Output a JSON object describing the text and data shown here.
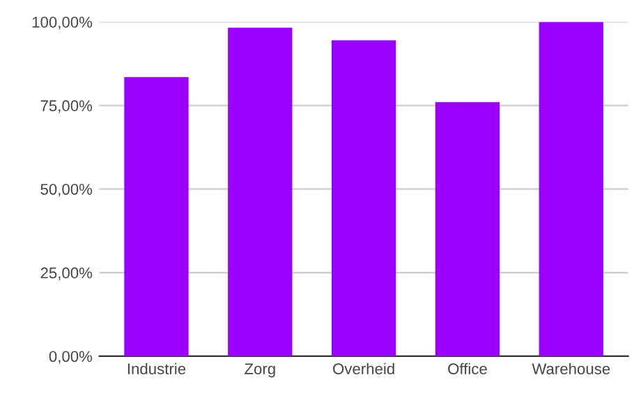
{
  "chart_data": {
    "type": "bar",
    "categories": [
      "Industrie",
      "Zorg",
      "Overheid",
      "Office",
      "Warehouse"
    ],
    "values": [
      83.5,
      98.3,
      94.5,
      76,
      100
    ],
    "color": "#9900ff",
    "ylim": [
      0,
      100
    ],
    "yticks": [
      {
        "value": 0,
        "label": "0,00%"
      },
      {
        "value": 25,
        "label": "25,00%"
      },
      {
        "value": 50,
        "label": "50,00%"
      },
      {
        "value": 75,
        "label": "75,00%"
      },
      {
        "value": 100,
        "label": "100,00%"
      }
    ],
    "grid": "y"
  }
}
